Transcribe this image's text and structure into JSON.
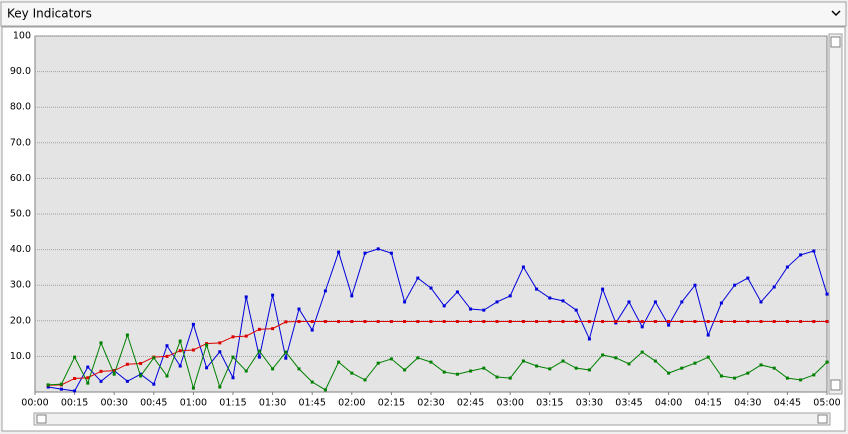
{
  "chart_data": {
    "type": "line",
    "title": "Key Indicators",
    "x": [
      5,
      10,
      15,
      20,
      25,
      30,
      35,
      40,
      45,
      50,
      55,
      60,
      65,
      70,
      75,
      80,
      85,
      90,
      95,
      100,
      105,
      110,
      115,
      120,
      125,
      130,
      135,
      140,
      145,
      150,
      155,
      160,
      165,
      170,
      175,
      180,
      185,
      190,
      195,
      200,
      205,
      210,
      215,
      220,
      225,
      230,
      235,
      240,
      245,
      250,
      255,
      260,
      265,
      270,
      275,
      280,
      285,
      290,
      295,
      300
    ],
    "series": [
      {
        "color": "#0000dd",
        "values": [
          1.4,
          0.8,
          0.3,
          7,
          3,
          6,
          3,
          5,
          2.2,
          13,
          7.3,
          19,
          6.8,
          11.3,
          4,
          26.7,
          9.8,
          27.2,
          9.5,
          23.3,
          17.4,
          28.4,
          39.3,
          27,
          39,
          40.2,
          39,
          25.3,
          32,
          29.2,
          24.2,
          28.1,
          23.3,
          23,
          25.3,
          27,
          35.1,
          28.9,
          26.4,
          25.6,
          23,
          14.9,
          28.9,
          19.4,
          25.3,
          18.3,
          25.3,
          18.8,
          25.3,
          30,
          16,
          25,
          30,
          32,
          25.3,
          29.5,
          35.1,
          38.5,
          39.6,
          27.5
        ]
      },
      {
        "color": "#dd0000",
        "values": [
          1.9,
          2,
          3.8,
          4,
          5.8,
          6,
          7.8,
          8,
          9.8,
          10,
          11.6,
          11.8,
          13.6,
          13.8,
          15.5,
          15.7,
          17.6,
          17.8,
          19.7,
          19.8,
          19.8,
          19.8,
          19.8,
          19.8,
          19.8,
          19.8,
          19.8,
          19.8,
          19.8,
          19.8,
          19.8,
          19.8,
          19.8,
          19.8,
          19.8,
          19.8,
          19.8,
          19.8,
          19.8,
          19.8,
          19.8,
          19.8,
          19.8,
          19.8,
          19.8,
          19.8,
          19.8,
          19.8,
          19.8,
          19.8,
          19.8,
          19.8,
          19.8,
          19.8,
          19.8,
          19.8,
          19.8,
          19.8,
          19.8,
          19.8
        ]
      },
      {
        "color": "#008000",
        "values": [
          2,
          2.2,
          9.8,
          2.5,
          13.8,
          5,
          16,
          4.5,
          9.6,
          4.5,
          14.3,
          1.1,
          13.2,
          1.4,
          9.8,
          5.9,
          11.5,
          6.5,
          11.2,
          6.5,
          2.8,
          0.6,
          8.4,
          5.3,
          3.4,
          8.1,
          9.3,
          6.2,
          9.6,
          8.4,
          5.6,
          5,
          5.9,
          6.7,
          4.2,
          3.9,
          8.7,
          7.3,
          6.5,
          8.7,
          6.7,
          6.2,
          10.4,
          9.6,
          7.9,
          11.2,
          8.7,
          5.3,
          6.7,
          8.1,
          9.8,
          4.5,
          3.9,
          5.3,
          7.6,
          6.7,
          3.9,
          3.4,
          4.8,
          8.4
        ]
      }
    ],
    "xlim": [
      0,
      300
    ],
    "xticks": [
      {
        "value": 0,
        "label": "00:00"
      },
      {
        "value": 15,
        "label": "00:15"
      },
      {
        "value": 30,
        "label": "00:30"
      },
      {
        "value": 45,
        "label": "00:45"
      },
      {
        "value": 60,
        "label": "01:00"
      },
      {
        "value": 75,
        "label": "01:15"
      },
      {
        "value": 90,
        "label": "01:30"
      },
      {
        "value": 105,
        "label": "01:45"
      },
      {
        "value": 120,
        "label": "02:00"
      },
      {
        "value": 135,
        "label": "02:15"
      },
      {
        "value": 150,
        "label": "02:30"
      },
      {
        "value": 165,
        "label": "02:45"
      },
      {
        "value": 180,
        "label": "03:00"
      },
      {
        "value": 195,
        "label": "03:15"
      },
      {
        "value": 210,
        "label": "03:30"
      },
      {
        "value": 225,
        "label": "03:45"
      },
      {
        "value": 240,
        "label": "04:00"
      },
      {
        "value": 255,
        "label": "04:15"
      },
      {
        "value": 270,
        "label": "04:30"
      },
      {
        "value": 285,
        "label": "04:45"
      },
      {
        "value": 300,
        "label": "05:00"
      }
    ],
    "ylim": [
      0,
      100
    ],
    "yticks": [
      {
        "value": 10,
        "label": "10.0"
      },
      {
        "value": 20,
        "label": "20.0"
      },
      {
        "value": 30,
        "label": "30.0"
      },
      {
        "value": 40,
        "label": "40.0"
      },
      {
        "value": 50,
        "label": "50.0"
      },
      {
        "value": 60,
        "label": "60.0"
      },
      {
        "value": 70,
        "label": "70.0"
      },
      {
        "value": 80,
        "label": "80.0"
      },
      {
        "value": 90,
        "label": "90.0"
      },
      100
    ],
    "grid": true
  }
}
